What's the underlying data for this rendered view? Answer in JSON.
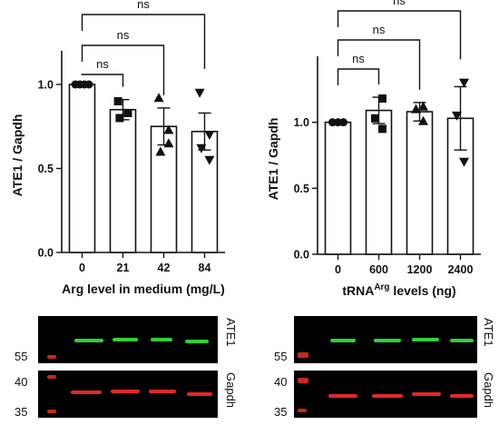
{
  "chart_data": [
    {
      "type": "bar",
      "title": "",
      "ylabel": "ATE1 / Gapdh",
      "xlabel": "Arg level in medium (mg/L)",
      "categories": [
        "0",
        "21",
        "42",
        "84"
      ],
      "values": [
        1.0,
        0.85,
        0.75,
        0.72
      ],
      "error": [
        0.0,
        0.06,
        0.11,
        0.11
      ],
      "points": [
        [
          1.0,
          1.0,
          1.0,
          1.0
        ],
        [
          0.9,
          0.83,
          0.8,
          0.83
        ],
        [
          0.92,
          0.73,
          0.6,
          0.65
        ],
        [
          0.95,
          0.7,
          0.62,
          0.55
        ]
      ],
      "markers": [
        "circle",
        "square",
        "triangle-up",
        "triangle-down"
      ],
      "ylim": [
        0,
        1.2
      ],
      "yticks": [
        "0.0",
        "0.5",
        "1.0"
      ],
      "comparisons": [
        {
          "from": "0",
          "to": "21",
          "label": "ns"
        },
        {
          "from": "0",
          "to": "42",
          "label": "ns"
        },
        {
          "from": "0",
          "to": "84",
          "label": "ns"
        }
      ],
      "grid": false
    },
    {
      "type": "bar",
      "title": "",
      "ylabel": "ATE1 / Gapdh",
      "xlabel": "tRNA",
      "xlabel_superscript": "Arg",
      "xlabel_suffix": " levels (ng)",
      "categories": [
        "0",
        "600",
        "1200",
        "2400"
      ],
      "values": [
        1.0,
        1.09,
        1.08,
        1.03
      ],
      "error": [
        0.0,
        0.1,
        0.07,
        0.24
      ],
      "points": [
        [
          1.0,
          1.0,
          1.0
        ],
        [
          1.18,
          1.03,
          0.95
        ],
        [
          1.12,
          1.1,
          1.01
        ],
        [
          1.3,
          1.05,
          0.7
        ]
      ],
      "markers": [
        "circle",
        "square",
        "triangle-up",
        "triangle-down"
      ],
      "ylim": [
        0,
        1.5
      ],
      "yticks": [
        "0.0",
        "0.5",
        "1.0"
      ],
      "comparisons": [
        {
          "from": "0",
          "to": "600",
          "label": "ns"
        },
        {
          "from": "0",
          "to": "1200",
          "label": "ns"
        },
        {
          "from": "0",
          "to": "2400",
          "label": "ns"
        }
      ],
      "grid": false
    }
  ],
  "blots": {
    "left": {
      "ate1_label": "ATE1",
      "gapdh_label": "Gapdh",
      "markers_top": "55",
      "markers_bottom": [
        "40",
        "35"
      ],
      "ate1_color": "#2fd13a",
      "gapdh_color": "#e3262a"
    },
    "right": {
      "ate1_label": "ATE1",
      "gapdh_label": "Gapdh",
      "markers_top": "55",
      "markers_bottom": [
        "40",
        "35"
      ],
      "ate1_color": "#2fd13a",
      "gapdh_color": "#e3262a"
    }
  }
}
